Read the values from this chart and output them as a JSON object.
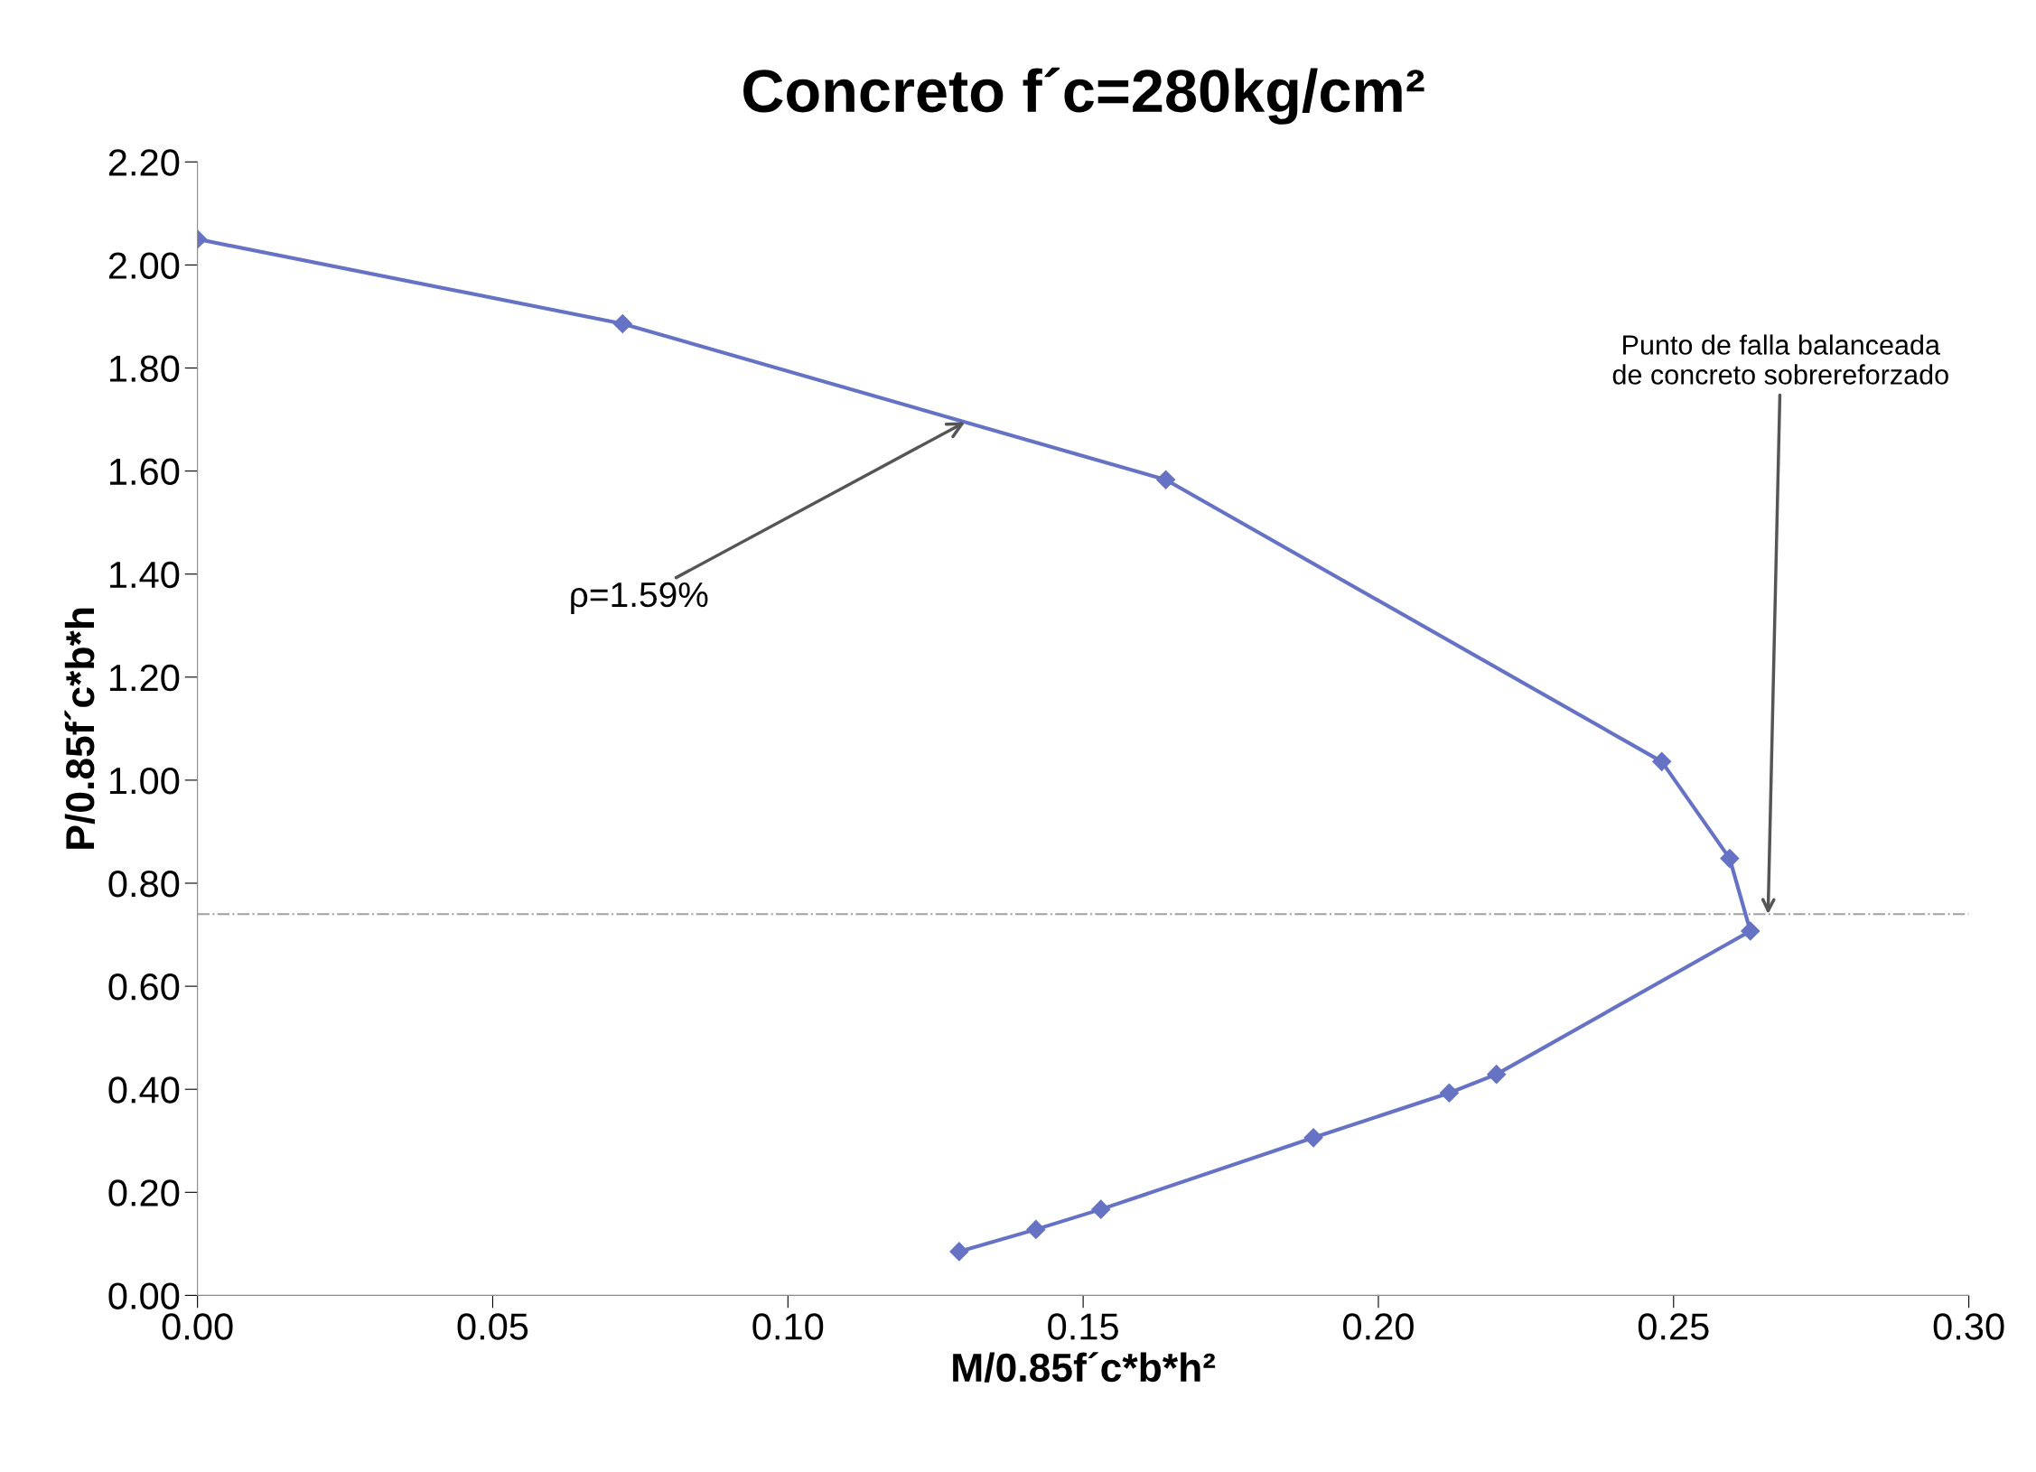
{
  "chart_data": {
    "type": "line",
    "title": "Concreto f´c=280kg/cm²",
    "xlabel": "M/0.85f´c*b*h²",
    "ylabel": "P/0.85f´c*b*h",
    "x": [
      0.0,
      0.072,
      0.164,
      0.248,
      0.2595,
      0.263,
      0.22,
      0.212,
      0.189,
      0.153,
      0.142,
      0.129
    ],
    "series": [
      {
        "color": "#6673c4",
        "values": [
          2.05,
          1.886,
          1.583,
          1.036,
          0.848,
          0.707,
          0.429,
          0.393,
          0.306,
          0.167,
          0.128,
          0.085
        ]
      }
    ],
    "marker": "diamond",
    "line_style": "solid",
    "grid": false,
    "xlim": [
      0,
      0.3
    ],
    "ylim": [
      0,
      2.2
    ],
    "xticks": [
      {
        "value": 0,
        "label": "0.00"
      },
      {
        "value": 0.05,
        "label": "0.05"
      },
      {
        "value": 0.1,
        "label": "0.10"
      },
      {
        "value": 0.15,
        "label": "0.15"
      },
      {
        "value": 0.2,
        "label": "0.20"
      },
      {
        "value": 0.25,
        "label": "0.25"
      },
      {
        "value": 0.3,
        "label": "0.30"
      }
    ],
    "yticks": [
      {
        "value": 0,
        "label": "0.00"
      },
      {
        "value": 0.2,
        "label": "0.20"
      },
      {
        "value": 0.4,
        "label": "0.40"
      },
      {
        "value": 0.6,
        "label": "0.60"
      },
      {
        "value": 0.8,
        "label": "0.80"
      },
      {
        "value": 1.0,
        "label": "1.00"
      },
      {
        "value": 1.2,
        "label": "1.20"
      },
      {
        "value": 1.4,
        "label": "1.40"
      },
      {
        "value": 1.6,
        "label": "1.60"
      },
      {
        "value": 1.8,
        "label": "1.80"
      },
      {
        "value": 2.0,
        "label": "2.00"
      },
      {
        "value": 2.2,
        "label": "2.20"
      }
    ],
    "ref_lines": [
      {
        "axis": "y",
        "value": 0.74,
        "color": "#a0a0a0",
        "line_style": "dashdot"
      }
    ],
    "annotations": [
      {
        "text": "ρ=1.59%",
        "x": 0.13,
        "y": 1.695
      },
      {
        "text": "Punto de falla balanceada\nde concreto sobrereforzado",
        "x": 0.266,
        "y": 0.74
      }
    ]
  }
}
